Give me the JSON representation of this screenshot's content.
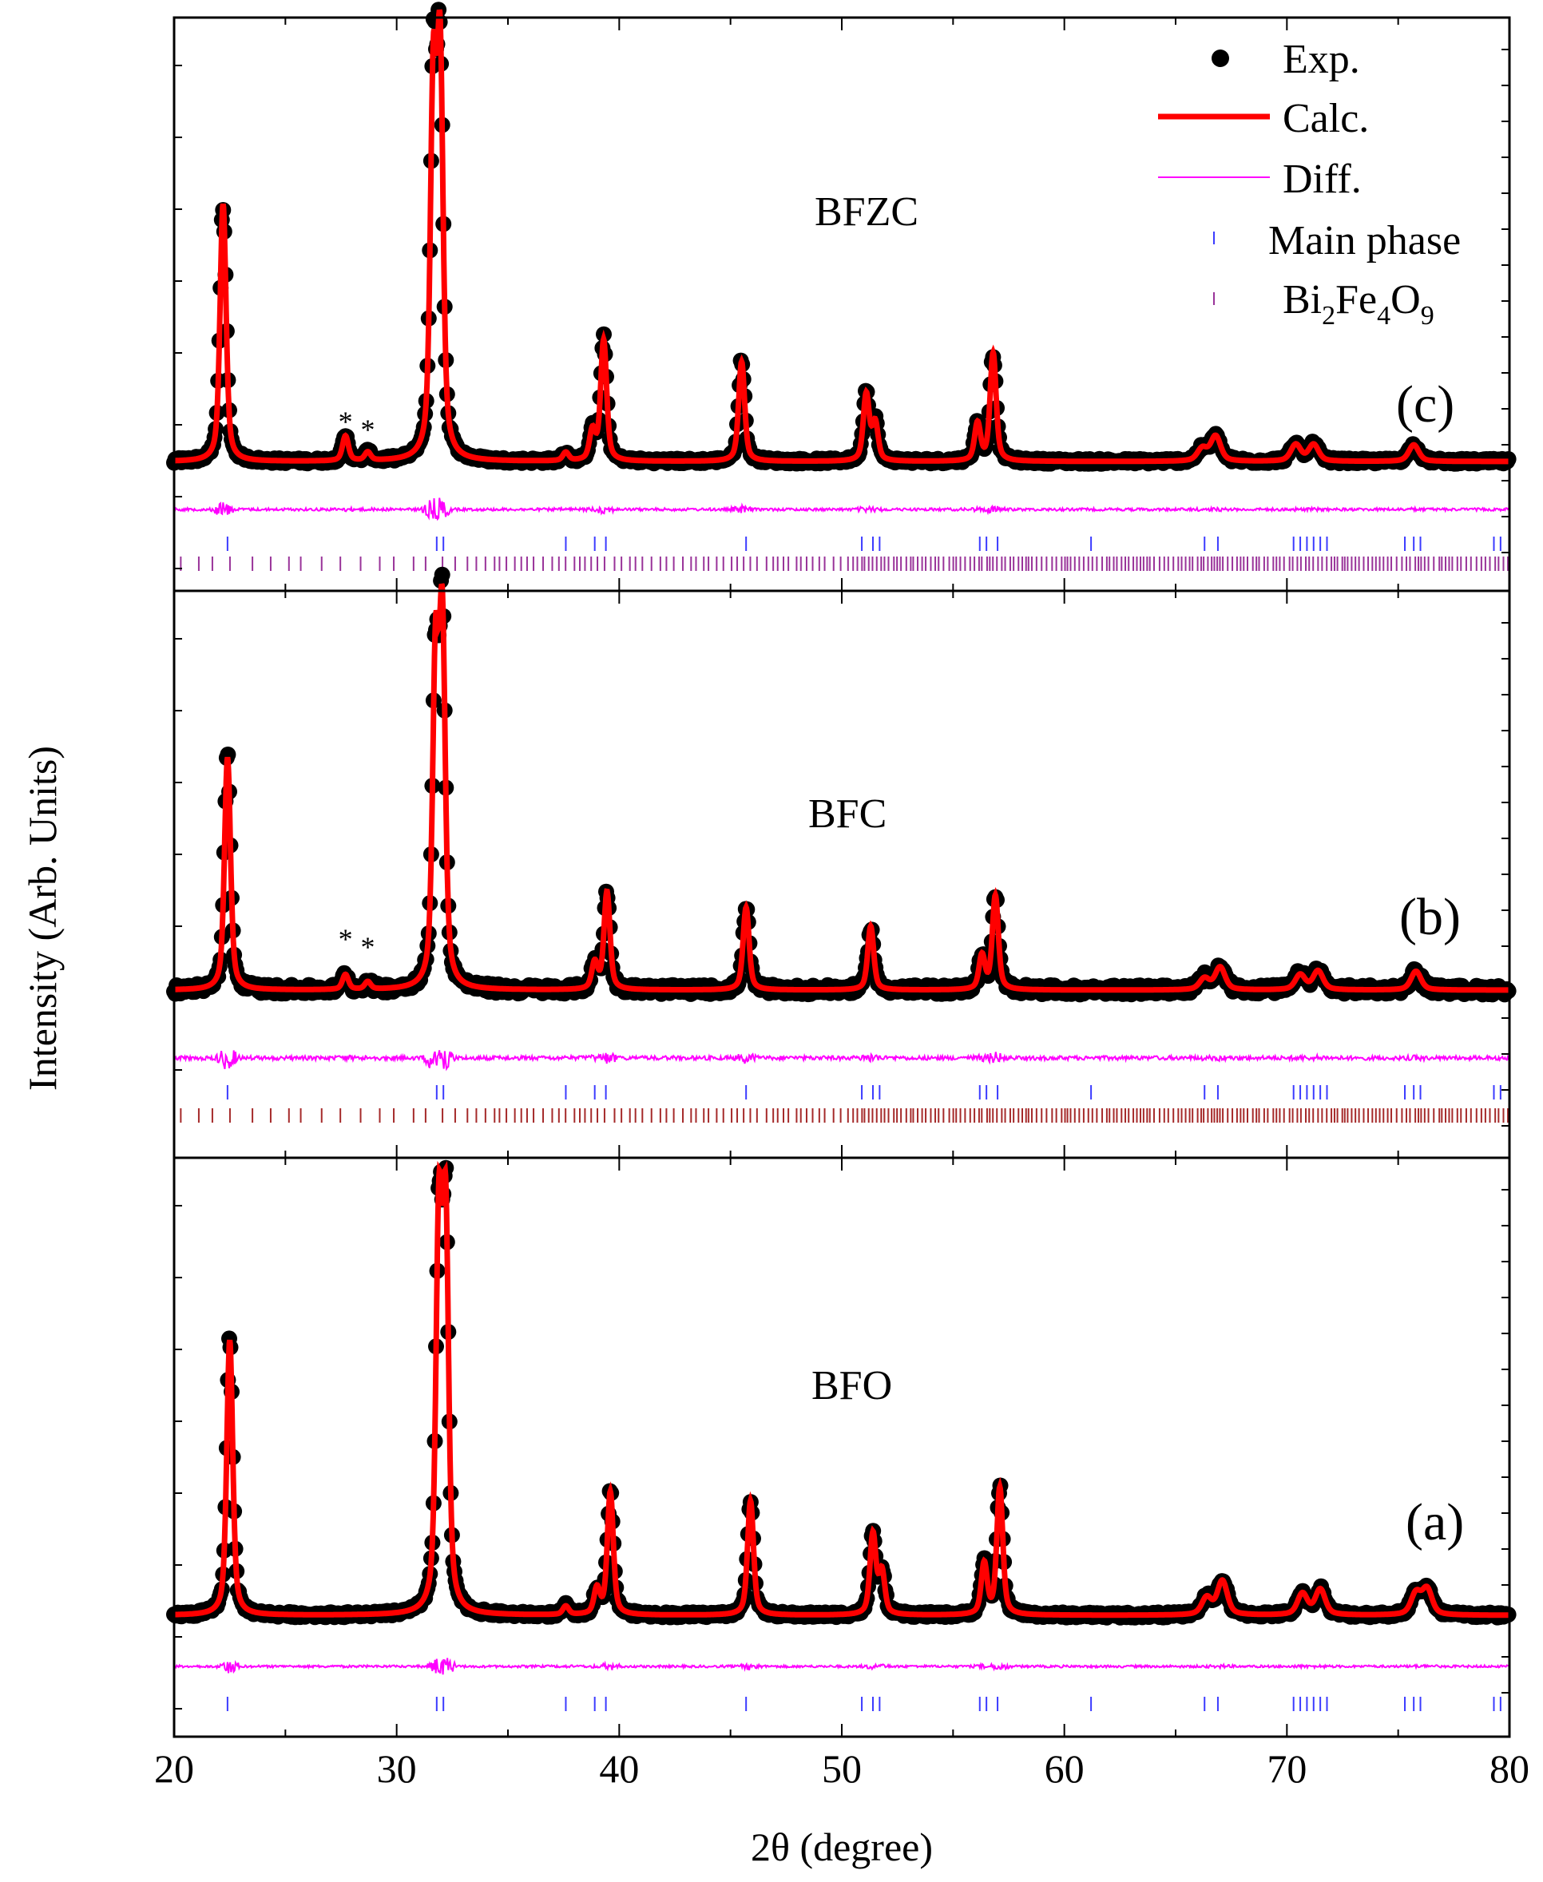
{
  "chart_data": {
    "type": "line",
    "title": "",
    "xlabel": "2θ (degree)",
    "ylabel": "Intensity (Arb. Units)",
    "xlim": [
      20,
      80
    ],
    "xticks": [
      20,
      30,
      40,
      50,
      60,
      70,
      80
    ],
    "yticks_labels": "none",
    "legend": {
      "placement": "top-right",
      "entries": [
        {
          "key": "exp",
          "label": "Exp.",
          "marker": "filled-circle",
          "color": "#000000"
        },
        {
          "key": "calc",
          "label": "Calc.",
          "marker": "thick-line",
          "color": "#ff0000"
        },
        {
          "key": "diff",
          "label": "Diff.",
          "marker": "thin-line",
          "color": "#ff00ff"
        },
        {
          "key": "main",
          "label": "Main phase",
          "marker": "tick",
          "color": "#3b3bff"
        },
        {
          "key": "secondary",
          "label_parts": [
            "Bi",
            "2",
            "Fe",
            "4",
            "O",
            "9"
          ],
          "marker": "tick",
          "color": "#993399"
        }
      ]
    },
    "colors": {
      "exp": "#000000",
      "calc": "#ff0000",
      "diff": "#ff00ff",
      "main_phase": "#3b3bff",
      "bi2fe4o9_c": "#993399",
      "bi2fe4o9_b": "#a52a2a"
    },
    "main_phase_bragg_positions": [
      22.4,
      31.8,
      32.1,
      37.6,
      38.9,
      39.4,
      45.7,
      50.9,
      51.4,
      51.7,
      56.2,
      56.5,
      57.0,
      61.2,
      66.3,
      66.9,
      70.3,
      70.6,
      70.9,
      71.2,
      71.5,
      71.8,
      75.3,
      75.7,
      76.0,
      79.3,
      79.6
    ],
    "panels": [
      {
        "id": "c",
        "sample": "BFZC",
        "panel_label": "(c)",
        "has_secondary_phase": true,
        "impurity_markers": [
          {
            "x": 27.7,
            "label": "*"
          },
          {
            "x": 28.7,
            "label": "*"
          }
        ],
        "baseline": 0.06,
        "peaks": [
          {
            "x": 22.2,
            "height": 0.62
          },
          {
            "x": 27.7,
            "height": 0.06
          },
          {
            "x": 28.7,
            "height": 0.02
          },
          {
            "x": 31.65,
            "height": 0.88
          },
          {
            "x": 31.95,
            "height": 0.94
          },
          {
            "x": 37.6,
            "height": 0.02
          },
          {
            "x": 38.8,
            "height": 0.07
          },
          {
            "x": 39.3,
            "height": 0.29
          },
          {
            "x": 45.5,
            "height": 0.24
          },
          {
            "x": 51.1,
            "height": 0.16
          },
          {
            "x": 51.5,
            "height": 0.09
          },
          {
            "x": 56.1,
            "height": 0.09
          },
          {
            "x": 56.8,
            "height": 0.26
          },
          {
            "x": 66.2,
            "height": 0.03
          },
          {
            "x": 66.8,
            "height": 0.06
          },
          {
            "x": 70.4,
            "height": 0.04
          },
          {
            "x": 71.2,
            "height": 0.04
          },
          {
            "x": 75.7,
            "height": 0.04
          }
        ]
      },
      {
        "id": "b",
        "sample": "BFC",
        "panel_label": "(b)",
        "has_secondary_phase": true,
        "impurity_markers": [
          {
            "x": 27.7,
            "label": "*"
          },
          {
            "x": 28.7,
            "label": "*"
          }
        ],
        "baseline": 0.06,
        "peaks": [
          {
            "x": 22.4,
            "height": 0.62
          },
          {
            "x": 27.7,
            "height": 0.04
          },
          {
            "x": 28.7,
            "height": 0.02
          },
          {
            "x": 31.75,
            "height": 0.85
          },
          {
            "x": 32.05,
            "height": 0.94
          },
          {
            "x": 38.9,
            "height": 0.07
          },
          {
            "x": 39.45,
            "height": 0.26
          },
          {
            "x": 45.7,
            "height": 0.22
          },
          {
            "x": 51.3,
            "height": 0.17
          },
          {
            "x": 56.3,
            "height": 0.09
          },
          {
            "x": 56.9,
            "height": 0.25
          },
          {
            "x": 66.3,
            "height": 0.03
          },
          {
            "x": 67.0,
            "height": 0.06
          },
          {
            "x": 70.6,
            "height": 0.04
          },
          {
            "x": 71.4,
            "height": 0.05
          },
          {
            "x": 75.8,
            "height": 0.05
          }
        ]
      },
      {
        "id": "a",
        "sample": "BFO",
        "panel_label": "(a)",
        "has_secondary_phase": false,
        "impurity_markers": [],
        "baseline": 0.06,
        "peaks": [
          {
            "x": 22.5,
            "height": 0.65
          },
          {
            "x": 31.9,
            "height": 0.9
          },
          {
            "x": 32.2,
            "height": 0.9
          },
          {
            "x": 37.6,
            "height": 0.02
          },
          {
            "x": 39.0,
            "height": 0.06
          },
          {
            "x": 39.6,
            "height": 0.29
          },
          {
            "x": 45.9,
            "height": 0.27
          },
          {
            "x": 51.4,
            "height": 0.19
          },
          {
            "x": 51.8,
            "height": 0.1
          },
          {
            "x": 56.4,
            "height": 0.12
          },
          {
            "x": 57.1,
            "height": 0.3
          },
          {
            "x": 66.4,
            "height": 0.04
          },
          {
            "x": 67.1,
            "height": 0.08
          },
          {
            "x": 70.7,
            "height": 0.05
          },
          {
            "x": 71.5,
            "height": 0.06
          },
          {
            "x": 75.8,
            "height": 0.05
          },
          {
            "x": 76.3,
            "height": 0.06
          }
        ]
      }
    ]
  }
}
